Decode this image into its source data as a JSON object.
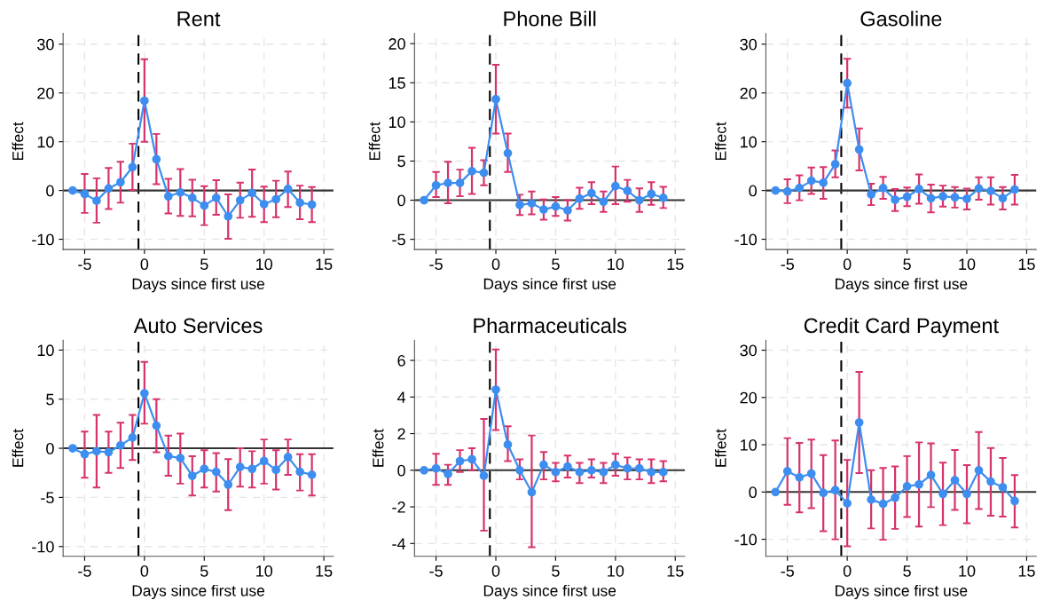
{
  "chart_data": [
    {
      "type": "line",
      "title": "Rent",
      "xlabel": "Days since first use",
      "ylabel": "Effect",
      "x": [
        -6,
        -5,
        -4,
        -3,
        -2,
        -1,
        0,
        1,
        2,
        3,
        4,
        5,
        6,
        7,
        8,
        9,
        10,
        11,
        12,
        13,
        14
      ],
      "xlim": [
        -6.8,
        15.8
      ],
      "xticks": [
        -5,
        0,
        5,
        10,
        15
      ],
      "ylim": [
        -12.1,
        32.2
      ],
      "yticks": [
        -10,
        0,
        10,
        20,
        30
      ],
      "grid": true,
      "marker": "circle",
      "line_style": "solid",
      "ref_lines": [
        {
          "axis": "x",
          "value": -0.5,
          "color": "#000000",
          "line_style": "dashed"
        },
        {
          "axis": "y",
          "value": 0,
          "color": "#333333",
          "line_style": "solid"
        }
      ],
      "series": [
        {
          "color": "#3d8ef0",
          "values": [
            0,
            -0.7,
            -2.1,
            0.4,
            1.7,
            4.8,
            18.4,
            6.4,
            -1.2,
            -0.4,
            -1.5,
            -3.1,
            -1.5,
            -5.3,
            -2.0,
            -0.5,
            -2.8,
            -1.8,
            0.3,
            -2.5,
            -2.9
          ],
          "errors": [
            null,
            [
              -4.6,
              3.4
            ],
            [
              -6.6,
              2.5
            ],
            [
              -3.8,
              4.6
            ],
            [
              -2.5,
              5.9
            ],
            [
              0.1,
              9.6
            ],
            [
              10.0,
              26.9
            ],
            [
              1.3,
              11.6
            ],
            [
              -4.7,
              2.4
            ],
            [
              -5.2,
              4.4
            ],
            [
              -5.3,
              2.2
            ],
            [
              -7.1,
              0.9
            ],
            [
              -5.0,
              2.1
            ],
            [
              -9.9,
              -0.8
            ],
            [
              -5.6,
              1.6
            ],
            [
              -5.4,
              4.3
            ],
            [
              -6.5,
              0.8
            ],
            [
              -5.5,
              2.0
            ],
            [
              -3.4,
              3.9
            ],
            [
              -5.9,
              1.0
            ],
            [
              -6.5,
              0.7
            ]
          ]
        }
      ]
    },
    {
      "type": "line",
      "title": "Phone Bill",
      "xlabel": "Days since first use",
      "ylabel": "Effect",
      "x": [
        -6,
        -5,
        -4,
        -3,
        -2,
        -1,
        0,
        1,
        2,
        3,
        4,
        5,
        6,
        7,
        8,
        9,
        10,
        11,
        12,
        13,
        14
      ],
      "xlim": [
        -6.8,
        15.8
      ],
      "xticks": [
        -5,
        0,
        5,
        10,
        15
      ],
      "ylim": [
        -6.3,
        21.3
      ],
      "yticks": [
        -5,
        0,
        5,
        10,
        15,
        20
      ],
      "grid": true,
      "marker": "circle",
      "line_style": "solid",
      "ref_lines": [
        {
          "axis": "x",
          "value": -0.5,
          "color": "#000000",
          "line_style": "dashed"
        },
        {
          "axis": "y",
          "value": 0,
          "color": "#333333",
          "line_style": "solid"
        }
      ],
      "series": [
        {
          "color": "#3d8ef0",
          "values": [
            0,
            1.9,
            2.2,
            2.2,
            3.7,
            3.5,
            12.9,
            6.0,
            -0.6,
            -0.4,
            -1.2,
            -0.8,
            -1.3,
            0.2,
            0.9,
            -0.2,
            1.8,
            1.2,
            0.0,
            0.8,
            0.3
          ],
          "errors": [
            null,
            [
              0.4,
              3.6
            ],
            [
              -0.4,
              4.9
            ],
            [
              0.5,
              3.9
            ],
            [
              0.8,
              6.7
            ],
            [
              1.9,
              5.1
            ],
            [
              8.5,
              17.3
            ],
            [
              3.6,
              8.5
            ],
            [
              -1.9,
              0.7
            ],
            [
              -1.8,
              1.1
            ],
            [
              -2.5,
              0.1
            ],
            [
              -2.0,
              0.4
            ],
            [
              -2.6,
              0.0
            ],
            [
              -1.1,
              1.6
            ],
            [
              -0.5,
              2.3
            ],
            [
              -1.5,
              1.1
            ],
            [
              -0.5,
              4.3
            ],
            [
              -0.2,
              2.6
            ],
            [
              -1.5,
              1.5
            ],
            [
              -0.6,
              2.3
            ],
            [
              -1.0,
              1.7
            ]
          ]
        }
      ]
    },
    {
      "type": "line",
      "title": "Gasoline",
      "xlabel": "Days since first use",
      "ylabel": "Effect",
      "x": [
        -6,
        -5,
        -4,
        -3,
        -2,
        -1,
        0,
        1,
        2,
        3,
        4,
        5,
        6,
        7,
        8,
        9,
        10,
        11,
        12,
        13,
        14
      ],
      "xlim": [
        -6.8,
        15.8
      ],
      "xticks": [
        -5,
        0,
        5,
        10,
        15
      ],
      "ylim": [
        -12.1,
        32.2
      ],
      "yticks": [
        -10,
        0,
        10,
        20,
        30
      ],
      "grid": true,
      "marker": "circle",
      "line_style": "solid",
      "ref_lines": [
        {
          "axis": "x",
          "value": -0.5,
          "color": "#000000",
          "line_style": "dashed"
        },
        {
          "axis": "y",
          "value": 0,
          "color": "#333333",
          "line_style": "solid"
        }
      ],
      "series": [
        {
          "color": "#3d8ef0",
          "values": [
            0,
            -0.2,
            0.5,
            2.0,
            1.6,
            5.4,
            22.0,
            8.4,
            -0.8,
            0.5,
            -1.9,
            -1.3,
            0.3,
            -1.6,
            -1.2,
            -1.4,
            -1.7,
            0.4,
            -0.1,
            -1.6,
            0.2
          ],
          "errors": [
            null,
            [
              -2.6,
              2.3
            ],
            [
              -2.0,
              3.1
            ],
            [
              -0.7,
              4.7
            ],
            [
              -1.7,
              4.8
            ],
            [
              2.7,
              8.2
            ],
            [
              17.0,
              27.0
            ],
            [
              4.1,
              12.7
            ],
            [
              -3.0,
              1.4
            ],
            [
              -1.7,
              2.8
            ],
            [
              -4.2,
              0.3
            ],
            [
              -3.2,
              0.6
            ],
            [
              -2.7,
              3.3
            ],
            [
              -4.5,
              1.2
            ],
            [
              -3.3,
              1.0
            ],
            [
              -3.5,
              0.7
            ],
            [
              -3.9,
              0.4
            ],
            [
              -1.9,
              2.7
            ],
            [
              -2.9,
              2.7
            ],
            [
              -3.9,
              0.7
            ],
            [
              -2.9,
              3.2
            ]
          ]
        }
      ]
    },
    {
      "type": "line",
      "title": "Auto Services",
      "xlabel": "Days since first use",
      "ylabel": "Effect",
      "x": [
        -6,
        -5,
        -4,
        -3,
        -2,
        -1,
        0,
        1,
        2,
        3,
        4,
        5,
        6,
        7,
        8,
        9,
        10,
        11,
        12,
        13,
        14
      ],
      "xlim": [
        -6.8,
        15.8
      ],
      "xticks": [
        -5,
        0,
        5,
        10,
        15
      ],
      "ylim": [
        -11.0,
        11.0
      ],
      "yticks": [
        -10,
        -5,
        0,
        5,
        10
      ],
      "grid": true,
      "marker": "circle",
      "line_style": "solid",
      "ref_lines": [
        {
          "axis": "x",
          "value": -0.5,
          "color": "#000000",
          "line_style": "dashed"
        },
        {
          "axis": "y",
          "value": 0,
          "color": "#333333",
          "line_style": "solid"
        }
      ],
      "series": [
        {
          "color": "#3d8ef0",
          "values": [
            0,
            -0.6,
            -0.3,
            -0.4,
            0.3,
            1.1,
            5.6,
            2.3,
            -0.8,
            -1.0,
            -2.8,
            -2.1,
            -2.4,
            -3.7,
            -1.9,
            -2.1,
            -1.3,
            -2.2,
            -0.9,
            -2.4,
            -2.7
          ],
          "errors": [
            null,
            [
              -3.0,
              1.7
            ],
            [
              -4.0,
              3.4
            ],
            [
              -2.5,
              1.7
            ],
            [
              -2.0,
              2.6
            ],
            [
              -1.2,
              3.4
            ],
            [
              2.5,
              8.8
            ],
            [
              -0.4,
              5.0
            ],
            [
              -2.8,
              1.3
            ],
            [
              -3.6,
              1.5
            ],
            [
              -4.8,
              -0.8
            ],
            [
              -4.0,
              -0.2
            ],
            [
              -4.4,
              -0.5
            ],
            [
              -6.3,
              -1.1
            ],
            [
              -3.9,
              0.0
            ],
            [
              -4.0,
              -0.3
            ],
            [
              -3.6,
              0.9
            ],
            [
              -4.2,
              -0.2
            ],
            [
              -2.7,
              0.9
            ],
            [
              -4.3,
              -0.6
            ],
            [
              -4.8,
              -0.6
            ]
          ]
        }
      ]
    },
    {
      "type": "line",
      "title": "Pharmaceuticals",
      "xlabel": "Days since first use",
      "ylabel": "Effect",
      "x": [
        -6,
        -5,
        -4,
        -3,
        -2,
        -1,
        0,
        1,
        2,
        3,
        4,
        5,
        6,
        7,
        8,
        9,
        10,
        11,
        12,
        13,
        14
      ],
      "xlim": [
        -6.8,
        15.8
      ],
      "xticks": [
        -5,
        0,
        5,
        10,
        15
      ],
      "ylim": [
        -4.7,
        7.1
      ],
      "yticks": [
        -4,
        -2,
        0,
        2,
        4,
        6
      ],
      "grid": true,
      "marker": "circle",
      "line_style": "solid",
      "ref_lines": [
        {
          "axis": "x",
          "value": -0.5,
          "color": "#000000",
          "line_style": "dashed"
        },
        {
          "axis": "y",
          "value": 0,
          "color": "#333333",
          "line_style": "solid"
        }
      ],
      "series": [
        {
          "color": "#3d8ef0",
          "values": [
            0,
            0.1,
            -0.2,
            0.5,
            0.6,
            -0.3,
            4.4,
            1.4,
            0.0,
            -1.2,
            0.3,
            -0.1,
            0.2,
            -0.1,
            0.0,
            -0.1,
            0.3,
            0.1,
            0.1,
            -0.1,
            -0.1
          ],
          "errors": [
            null,
            [
              -0.8,
              0.9
            ],
            [
              -0.8,
              0.3
            ],
            [
              -0.1,
              1.1
            ],
            [
              0.0,
              1.2
            ],
            [
              -3.3,
              2.8
            ],
            [
              2.2,
              6.6
            ],
            [
              0.5,
              2.4
            ],
            [
              -0.5,
              0.6
            ],
            [
              -4.2,
              1.9
            ],
            [
              -0.5,
              1.0
            ],
            [
              -0.6,
              0.4
            ],
            [
              -0.4,
              0.8
            ],
            [
              -0.7,
              0.4
            ],
            [
              -0.4,
              0.6
            ],
            [
              -0.7,
              0.4
            ],
            [
              -0.3,
              0.9
            ],
            [
              -0.5,
              0.7
            ],
            [
              -0.5,
              0.6
            ],
            [
              -0.7,
              0.6
            ],
            [
              -0.6,
              0.5
            ]
          ]
        }
      ]
    },
    {
      "type": "line",
      "title": "Credit Card Payment",
      "xlabel": "Days since first use",
      "ylabel": "Effect",
      "x": [
        -6,
        -5,
        -4,
        -3,
        -2,
        -1,
        0,
        1,
        2,
        3,
        4,
        5,
        6,
        7,
        8,
        9,
        10,
        11,
        12,
        13,
        14
      ],
      "xlim": [
        -6.8,
        15.8
      ],
      "xticks": [
        -5,
        0,
        5,
        10,
        15
      ],
      "ylim": [
        -13.6,
        32.1
      ],
      "yticks": [
        -10,
        0,
        10,
        20,
        30
      ],
      "grid": true,
      "marker": "circle",
      "line_style": "solid",
      "ref_lines": [
        {
          "axis": "x",
          "value": -0.5,
          "color": "#000000",
          "line_style": "dashed"
        },
        {
          "axis": "y",
          "value": 0,
          "color": "#333333",
          "line_style": "solid"
        }
      ],
      "series": [
        {
          "color": "#3d8ef0",
          "values": [
            0,
            4.4,
            3.1,
            3.9,
            -0.2,
            0.4,
            -2.4,
            14.7,
            -1.6,
            -2.5,
            -1.2,
            1.2,
            1.6,
            3.6,
            -0.4,
            2.5,
            -0.4,
            4.6,
            2.2,
            1.0,
            -1.9
          ],
          "errors": [
            null,
            [
              -2.7,
              11.4
            ],
            [
              -4.3,
              10.4
            ],
            [
              -3.4,
              11.1
            ],
            [
              -8.3,
              7.8
            ],
            [
              -10.0,
              10.9
            ],
            [
              -11.5,
              6.8
            ],
            [
              4.0,
              25.4
            ],
            [
              -7.7,
              4.6
            ],
            [
              -10.1,
              5.1
            ],
            [
              -7.8,
              5.4
            ],
            [
              -5.3,
              7.6
            ],
            [
              -7.3,
              10.5
            ],
            [
              -3.2,
              10.3
            ],
            [
              -7.0,
              6.2
            ],
            [
              -3.8,
              8.9
            ],
            [
              -6.6,
              5.7
            ],
            [
              -3.6,
              12.7
            ],
            [
              -5.0,
              9.3
            ],
            [
              -5.2,
              7.2
            ],
            [
              -7.5,
              3.6
            ]
          ]
        }
      ]
    }
  ]
}
